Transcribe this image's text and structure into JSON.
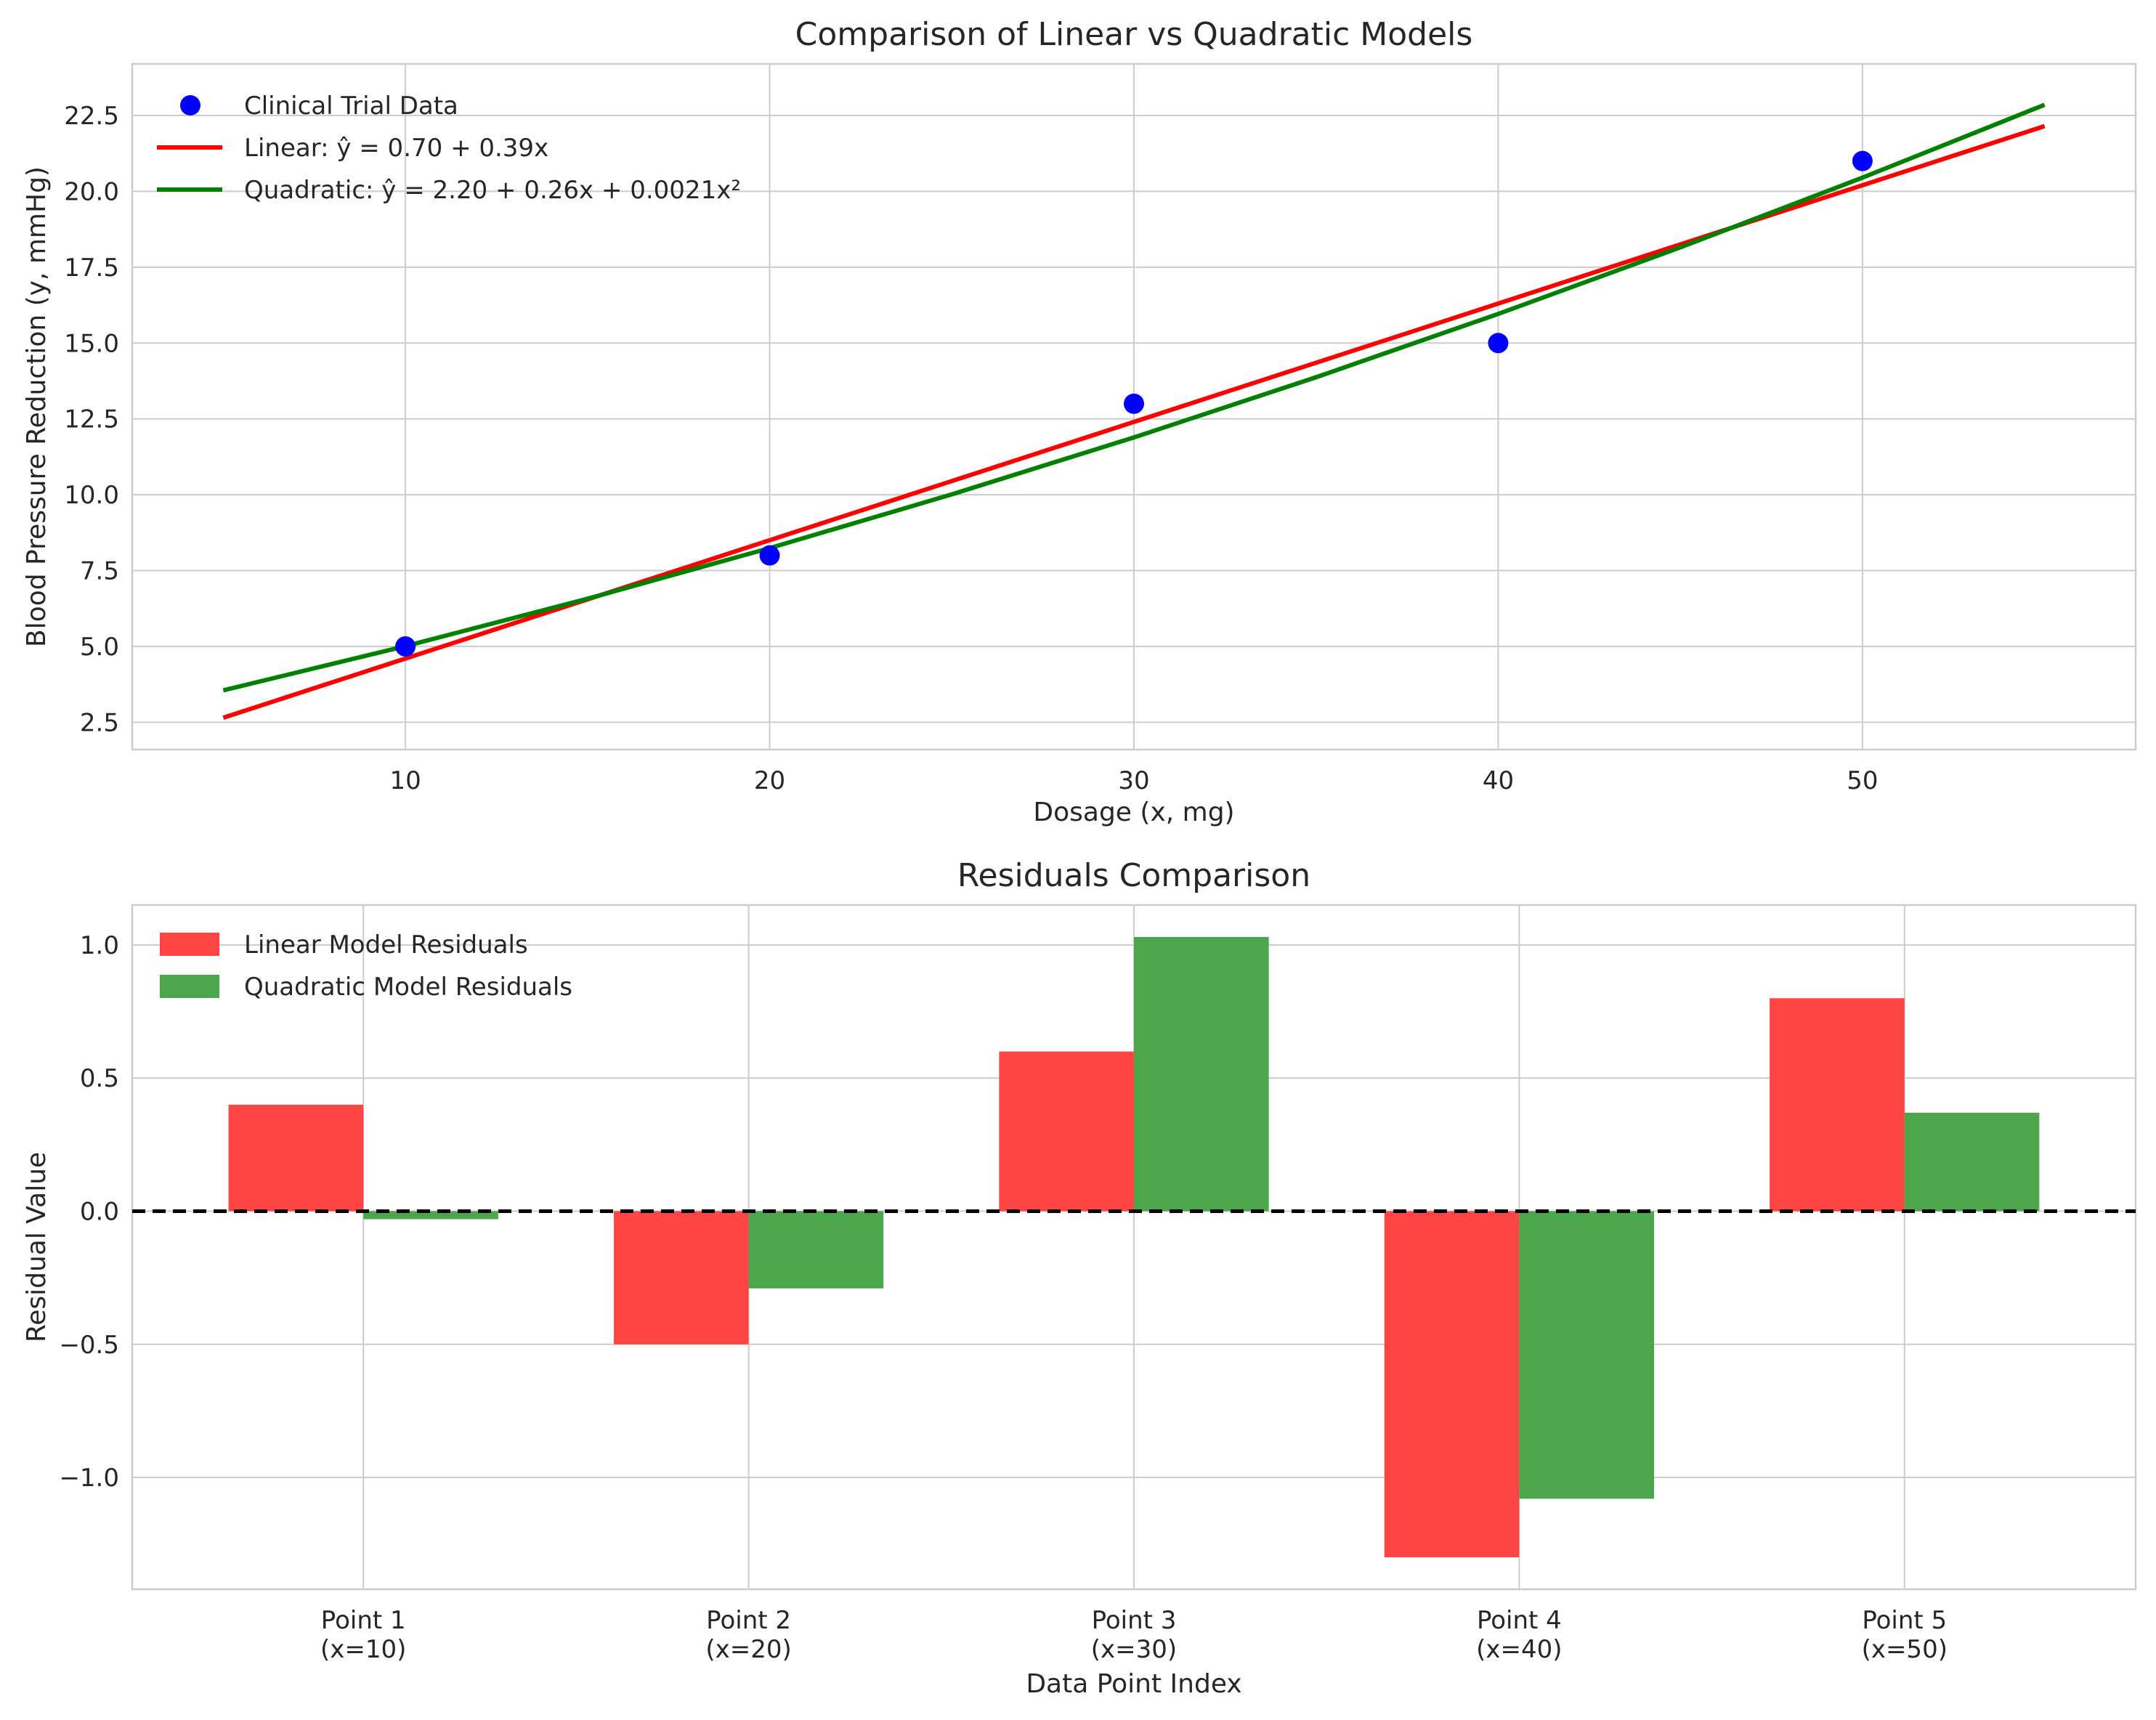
{
  "chart_data": [
    {
      "type": "line",
      "title": "Comparison of Linear vs Quadratic Models",
      "xlabel": "Dosage (x, mg)",
      "ylabel": "Blood Pressure Reduction (y, mmHg)",
      "xlim": [
        2.5,
        57.5
      ],
      "ylim": [
        1.6,
        24.2
      ],
      "xticks": [
        10,
        20,
        30,
        40,
        50
      ],
      "yticks": [
        2.5,
        5.0,
        7.5,
        10.0,
        12.5,
        15.0,
        17.5,
        20.0,
        22.5
      ],
      "ytick_labels": [
        "2.5",
        "5.0",
        "7.5",
        "10.0",
        "12.5",
        "15.0",
        "17.5",
        "20.0",
        "22.5"
      ],
      "grid": true,
      "legend_position": "upper-left",
      "scatter": {
        "name": "Clinical Trial Data",
        "color": "#0000ff",
        "x": [
          10,
          20,
          30,
          40,
          50
        ],
        "y": [
          5,
          8,
          13,
          15,
          21
        ]
      },
      "series": [
        {
          "name": "Linear: ŷ = 0.70 + 0.39x",
          "color": "#ff0000",
          "x": [
            5,
            55
          ],
          "y": [
            2.65,
            22.15
          ]
        },
        {
          "name": "Quadratic: ŷ = 2.20 + 0.26x + 0.0021x²",
          "color": "#008000",
          "x": [
            5,
            10,
            15,
            20,
            25,
            30,
            35,
            40,
            45,
            50,
            55
          ],
          "y": [
            3.5525,
            5.01,
            6.5725,
            8.24,
            10.0125,
            11.89,
            13.8725,
            15.96,
            18.1525,
            20.45,
            22.8525
          ]
        }
      ]
    },
    {
      "type": "bar",
      "title": "Residuals Comparison",
      "xlabel": "Data Point Index",
      "ylabel": "Residual Value",
      "categories": [
        [
          "Point 1",
          "(x=10)"
        ],
        [
          "Point 2",
          "(x=20)"
        ],
        [
          "Point 3",
          "(x=30)"
        ],
        [
          "Point 4",
          "(x=40)"
        ],
        [
          "Point 5",
          "(x=50)"
        ]
      ],
      "ylim": [
        -1.42,
        1.15
      ],
      "yticks": [
        -1.0,
        -0.5,
        0.0,
        0.5,
        1.0
      ],
      "ytick_labels": [
        "−1.0",
        "−0.5",
        "0.0",
        "0.5",
        "1.0"
      ],
      "grid": true,
      "legend_position": "upper-left",
      "zero_line": {
        "y": 0,
        "style": "dashed",
        "color": "#000000"
      },
      "series": [
        {
          "name": "Linear Model Residuals",
          "color": "#ff4444",
          "values": [
            0.4,
            -0.5,
            0.6,
            -1.3,
            0.8
          ]
        },
        {
          "name": "Quadratic Model Residuals",
          "color": "#4ca64c",
          "values": [
            -0.03,
            -0.29,
            1.03,
            -1.08,
            0.37
          ]
        }
      ]
    }
  ]
}
